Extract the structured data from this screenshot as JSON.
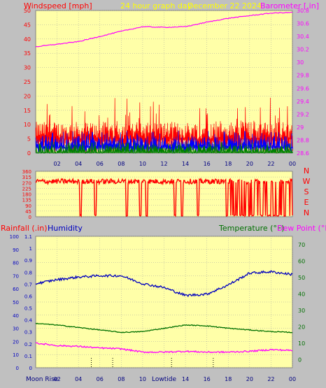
{
  "colors": {
    "background": "#c0c0c0",
    "plot_bg": "#ffffa8",
    "grid": "#a0a0a0",
    "wind": "#ff0000",
    "wind_avg": "#0000ff",
    "wind_low": "#008000",
    "barometer": "#ff00ff",
    "direction": "#ff0000",
    "humidity": "#0000c0",
    "temperature": "#007000",
    "dewpoint": "#ff00ff",
    "header_title": "#ffff00"
  },
  "header": {
    "wind_label": "Windspeed [mph]",
    "title": "24 hour graph day",
    "date": "December 22 2024",
    "baro_label": "Barometer [.in]"
  },
  "bottom_header": {
    "rain_label": "Rainfall (.in)",
    "humidity_label": "Humidity",
    "temp_label": "Temperature (°F)",
    "dew_label": "Dew Point (°F)"
  },
  "footer": {
    "moon_rise": "Moon Rise",
    "low_tide": "Lowtide"
  },
  "chart_data": [
    {
      "type": "line",
      "name": "wind-baro",
      "x_ticks": [
        "02",
        "04",
        "06",
        "08",
        "10",
        "12",
        "14",
        "16",
        "18",
        "20",
        "22",
        "00"
      ],
      "x_range": [
        0,
        24
      ],
      "y_left": {
        "ticks": [
          "0",
          "5",
          "10",
          "15",
          "20",
          "25",
          "30",
          "35",
          "40",
          "45",
          "50"
        ],
        "range": [
          0,
          50
        ]
      },
      "y_right": {
        "ticks": [
          "28.6",
          "28.8",
          "29",
          "29.2",
          "29.4",
          "29.6",
          "29.8",
          "30",
          "30.2",
          "30.4",
          "30.6",
          "30.8"
        ],
        "range": [
          28.6,
          30.8
        ]
      },
      "wind_bands": {
        "gust_typical": [
          5,
          11
        ],
        "gust_max": 20,
        "avg": [
          2,
          6
        ],
        "low": [
          0,
          3
        ]
      },
      "barometer": [
        {
          "x": 0,
          "y": 30.24
        },
        {
          "x": 2,
          "y": 30.28
        },
        {
          "x": 4,
          "y": 30.32
        },
        {
          "x": 6,
          "y": 30.4
        },
        {
          "x": 8,
          "y": 30.48
        },
        {
          "x": 10,
          "y": 30.55
        },
        {
          "x": 12,
          "y": 30.54
        },
        {
          "x": 14,
          "y": 30.55
        },
        {
          "x": 16,
          "y": 30.62
        },
        {
          "x": 18,
          "y": 30.68
        },
        {
          "x": 20,
          "y": 30.72
        },
        {
          "x": 22,
          "y": 30.76
        },
        {
          "x": 24,
          "y": 30.77
        }
      ]
    },
    {
      "type": "scatter",
      "name": "wind-direction",
      "y_ticks": [
        "360",
        "315",
        "270",
        "225",
        "180",
        "135",
        "90",
        "45",
        "0"
      ],
      "compass": [
        "N",
        "W",
        "S",
        "E",
        "N"
      ],
      "range": [
        0,
        360
      ],
      "typical_direction": 280,
      "drops_to_north_hours": [
        4.2,
        5.6,
        8.5,
        9.8,
        10.4,
        13.0,
        13.7,
        15.2,
        17.9,
        18.6,
        19.4,
        20.3,
        21.2,
        21.9,
        22.6,
        23.3
      ]
    },
    {
      "type": "line",
      "name": "temp-humidity",
      "x_ticks": [
        "02",
        "04",
        "06",
        "08",
        "10",
        "12",
        "14",
        "16",
        "18",
        "20",
        "22",
        "00"
      ],
      "left_outer": {
        "ticks": [
          "0",
          "10",
          "20",
          "30",
          "40",
          "50",
          "60",
          "70",
          "80",
          "90",
          "100"
        ],
        "range": [
          0,
          100
        ]
      },
      "left_inner": {
        "ticks": [
          "0",
          "0.1",
          "0.2",
          "0.3",
          "0.4",
          "0.5",
          "0.6",
          "0.7",
          "0.8",
          "0.9",
          "1",
          "1.1"
        ],
        "range": [
          0,
          1.1
        ]
      },
      "right": {
        "ticks": [
          "0",
          "10",
          "20",
          "30",
          "40",
          "50",
          "60",
          "70"
        ],
        "range": [
          -5,
          75
        ]
      },
      "humidity": [
        {
          "x": 0,
          "y": 64
        },
        {
          "x": 2,
          "y": 67
        },
        {
          "x": 4,
          "y": 69
        },
        {
          "x": 6,
          "y": 70
        },
        {
          "x": 8,
          "y": 70
        },
        {
          "x": 10,
          "y": 64
        },
        {
          "x": 12,
          "y": 61
        },
        {
          "x": 14,
          "y": 55
        },
        {
          "x": 16,
          "y": 56
        },
        {
          "x": 18,
          "y": 63
        },
        {
          "x": 20,
          "y": 72
        },
        {
          "x": 22,
          "y": 73
        },
        {
          "x": 24,
          "y": 71
        }
      ],
      "temperature": [
        {
          "x": 0,
          "y": 22
        },
        {
          "x": 2,
          "y": 21
        },
        {
          "x": 4,
          "y": 19.5
        },
        {
          "x": 6,
          "y": 18
        },
        {
          "x": 8,
          "y": 16.5
        },
        {
          "x": 10,
          "y": 17
        },
        {
          "x": 12,
          "y": 19
        },
        {
          "x": 14,
          "y": 21
        },
        {
          "x": 16,
          "y": 20.5
        },
        {
          "x": 18,
          "y": 19
        },
        {
          "x": 20,
          "y": 18
        },
        {
          "x": 22,
          "y": 17
        },
        {
          "x": 24,
          "y": 16.5
        }
      ],
      "dewpoint": [
        {
          "x": 0,
          "y": 10
        },
        {
          "x": 2,
          "y": 8.5
        },
        {
          "x": 4,
          "y": 8
        },
        {
          "x": 6,
          "y": 7
        },
        {
          "x": 8,
          "y": 6.5
        },
        {
          "x": 10,
          "y": 4.5
        },
        {
          "x": 12,
          "y": 4.5
        },
        {
          "x": 14,
          "y": 5
        },
        {
          "x": 16,
          "y": 4.5
        },
        {
          "x": 18,
          "y": 4.5
        },
        {
          "x": 20,
          "y": 5
        },
        {
          "x": 22,
          "y": 6
        },
        {
          "x": 24,
          "y": 5.5
        }
      ],
      "event_markers": [
        {
          "name": "moon-rise-marker",
          "x": 5.2
        },
        {
          "name": "event-marker-2",
          "x": 7.2
        },
        {
          "name": "low-tide-marker",
          "x": 12.7
        },
        {
          "name": "event-marker-4",
          "x": 16.6
        }
      ]
    }
  ]
}
